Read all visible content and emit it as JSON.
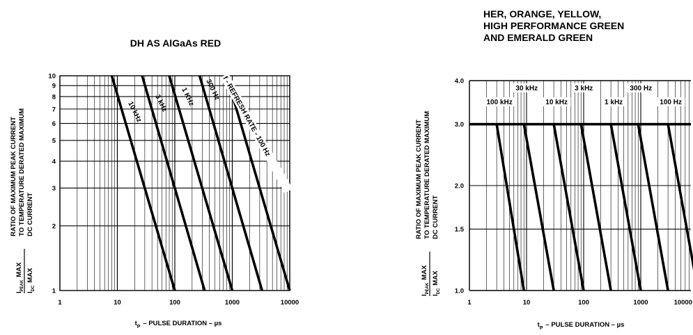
{
  "chart_data": [
    {
      "type": "line",
      "title": "DH AS AlGaAs RED",
      "xlabel": "t",
      "xlabel_sub": "P",
      "xlabel_rest": "– PULSE DURATION – µs",
      "ylabel_frac_top": "I",
      "ylabel_frac_top_sub": "PEAK",
      "ylabel_frac_top_after": "MAX",
      "ylabel_frac_bottom": "I",
      "ylabel_frac_bottom_sub": "DC",
      "ylabel_frac_bottom_after": "MAX",
      "ylabel_lines": [
        "RATIO OF MAXIMUM PEAK CURRENT",
        "TO TEMPERATURE DERATED MAXIMUM",
        "DC CURRENT"
      ],
      "x_scale": "log",
      "y_scale": "log",
      "xlim": [
        1,
        10000
      ],
      "ylim": [
        1,
        10
      ],
      "x_ticks": [
        1,
        10,
        100,
        1000,
        10000
      ],
      "x_tick_labels": [
        "1",
        "10",
        "100",
        "1000",
        "10000"
      ],
      "y_ticks": [
        1,
        2,
        3,
        4,
        5,
        6,
        7,
        8,
        9,
        10
      ],
      "y_tick_labels": [
        "1",
        "2",
        "3",
        "4",
        "5",
        "6",
        "7",
        "8",
        "9",
        "10"
      ],
      "grid": true,
      "series": [
        {
          "name": "10 kHz",
          "x": [
            8,
            100
          ],
          "y": [
            10,
            1
          ]
        },
        {
          "name": "3 kHz",
          "x": [
            27,
            330
          ],
          "y": [
            10,
            1
          ]
        },
        {
          "name": "1 KHz",
          "x": [
            80,
            1000
          ],
          "y": [
            10,
            1
          ]
        },
        {
          "name": "300 Hz",
          "x": [
            270,
            3300
          ],
          "y": [
            10,
            1
          ]
        },
        {
          "name": "f - REFRESH RATE - 100 Hz",
          "x": [
            800,
            10000
          ],
          "y": [
            10,
            1
          ]
        }
      ]
    },
    {
      "type": "line",
      "title_lines": [
        "HER, ORANGE, YELLOW,",
        "HIGH PERFORMANCE GREEN",
        "AND EMERALD GREEN"
      ],
      "xlabel": "t",
      "xlabel_sub": "P",
      "xlabel_rest": "– PULSE DURATION – µs",
      "ylabel_frac_top": "I",
      "ylabel_frac_top_sub": "PEAK",
      "ylabel_frac_top_after": "MAX",
      "ylabel_frac_bottom": "I",
      "ylabel_frac_bottom_sub": "DC",
      "ylabel_frac_bottom_after": "MAX",
      "ylabel_lines": [
        "RATIO OF MAXIMUM PEAK CURRENT",
        "TO TEMPERATURE DERATED MAXIMUM",
        "DC CURRENT"
      ],
      "x_scale": "log",
      "y_scale": "log",
      "xlim": [
        1,
        10000
      ],
      "ylim": [
        1,
        4
      ],
      "x_ticks": [
        1,
        10,
        100,
        1000,
        10000
      ],
      "x_tick_labels": [
        "1",
        "10",
        "100",
        "1000",
        "10000"
      ],
      "y_ticks": [
        1,
        1.5,
        2,
        3,
        4
      ],
      "y_tick_labels": [
        "1.0",
        "1.5",
        "2.0",
        "3.0",
        "4.0"
      ],
      "grid": true,
      "series": [
        {
          "name": "100 kHz",
          "x": [
            3,
            9
          ],
          "y": [
            3,
            1
          ]
        },
        {
          "name": "30 kHz",
          "x": [
            9,
            30
          ],
          "y": [
            3,
            1
          ]
        },
        {
          "name": "10 kHz",
          "x": [
            30,
            100
          ],
          "y": [
            3,
            1
          ]
        },
        {
          "name": "3 kHz",
          "x": [
            90,
            300
          ],
          "y": [
            3,
            1
          ]
        },
        {
          "name": "1 kHz",
          "x": [
            300,
            1000
          ],
          "y": [
            3,
            1
          ]
        },
        {
          "name": "300 Hz",
          "x": [
            900,
            3000
          ],
          "y": [
            3,
            1
          ]
        },
        {
          "name": "100 Hz",
          "x": [
            3000,
            10000
          ],
          "y": [
            3,
            1
          ]
        }
      ],
      "plateau": {
        "y": 3
      }
    }
  ]
}
